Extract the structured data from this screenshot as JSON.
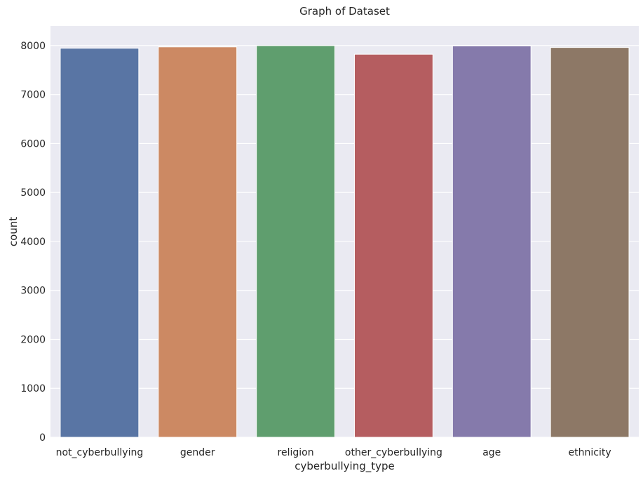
{
  "chart_data": {
    "type": "bar",
    "title": "Graph of Dataset",
    "xlabel": "cyberbullying_type",
    "ylabel": "count",
    "categories": [
      "not_cyberbullying",
      "gender",
      "religion",
      "other_cyberbullying",
      "age",
      "ethnicity"
    ],
    "values": [
      7945,
      7973,
      7998,
      7823,
      7992,
      7961
    ],
    "colors": [
      "#5975a4",
      "#cc8963",
      "#5f9e6e",
      "#b55d60",
      "#857aab",
      "#8d7866"
    ],
    "ylim": [
      0,
      8400
    ],
    "yticks": [
      0,
      1000,
      2000,
      3000,
      4000,
      5000,
      6000,
      7000,
      8000
    ],
    "grid": true,
    "background_color": "#eaeaf2",
    "grid_color": "#ffffff"
  }
}
